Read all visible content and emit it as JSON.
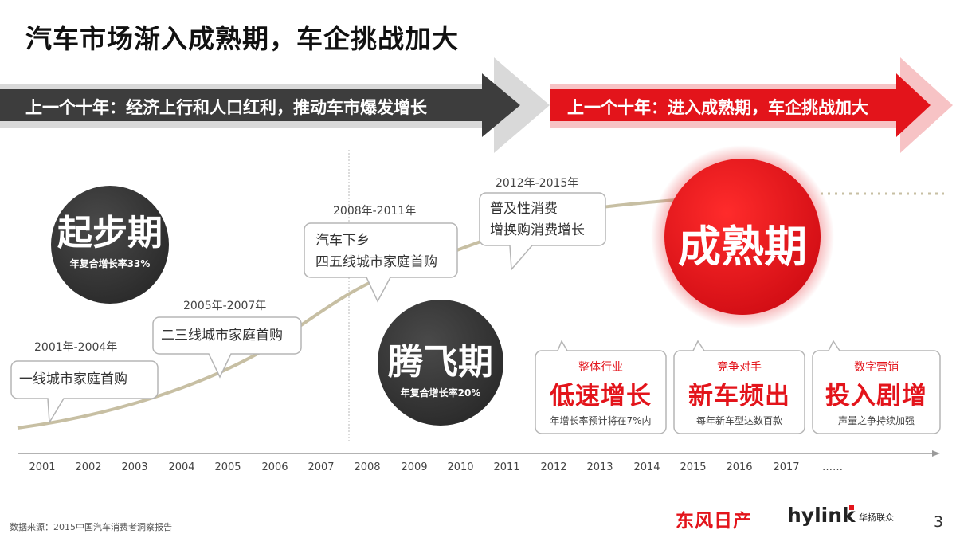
{
  "title": "汽车市场渐入成熟期，车企挑战加大",
  "banner": {
    "left_text": "上一个十年：经济上行和人口红利，推动车市爆发增长",
    "right_text": "上一个十年：进入成熟期，车企挑战加大"
  },
  "phases": {
    "start": {
      "title": "起步期",
      "subtitle": "年复合增长率33%"
    },
    "takeoff": {
      "title": "腾飞期",
      "subtitle": "年复合增长率20%"
    },
    "mature": {
      "title": "成熟期"
    }
  },
  "milestones": [
    {
      "period": "2001年-2004年",
      "lines": [
        "一线城市家庭首购"
      ]
    },
    {
      "period": "2005年-2007年",
      "lines": [
        "二三线城市家庭首购"
      ]
    },
    {
      "period": "2008年-2011年",
      "lines": [
        "汽车下乡",
        "四五线城市家庭首购"
      ]
    },
    {
      "period": "2012年-2015年",
      "lines": [
        "普及性消费",
        "增换购消费增长"
      ]
    }
  ],
  "challenges": [
    {
      "top": "整体行业",
      "main": "低速增长",
      "sub": "年增长率预计将在7%内"
    },
    {
      "top": "竞争对手",
      "main": "新车频出",
      "sub": "每年新车型达数百款"
    },
    {
      "top": "数字营销",
      "main": "投入剧增",
      "sub": "声量之争持续加强"
    }
  ],
  "timeline": {
    "years": [
      "2001",
      "2002",
      "2003",
      "2004",
      "2005",
      "2006",
      "2007",
      "2008",
      "2009",
      "2010",
      "2011",
      "2012",
      "2013",
      "2014",
      "2015",
      "2016",
      "2017",
      "……"
    ]
  },
  "footer": {
    "source": "数据来源：2015中国汽车消费者洞察报告",
    "brand_primary": "东风日产",
    "brand_secondary": "hylink",
    "brand_secondary_cn": "华扬联众",
    "page_number": "3"
  },
  "colors": {
    "accent_red": "#e3141b",
    "dark_gray": "#3a3a3a",
    "curve": "#c7bfa3"
  }
}
